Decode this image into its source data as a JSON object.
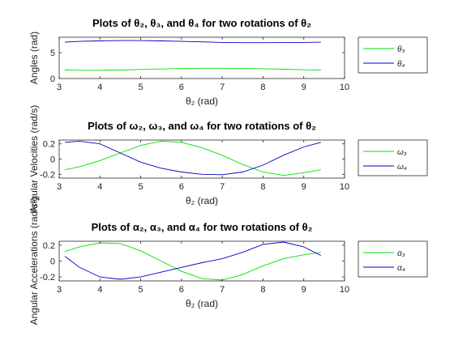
{
  "chart_data": [
    {
      "type": "line",
      "title": "Plots of θ₂, θ₃, and θ₄ for two rotations of θ₂",
      "xlabel": "θ₂ (rad)",
      "ylabel": "Angles (rad)",
      "xlim": [
        3,
        10
      ],
      "ylim": [
        0,
        8
      ],
      "xticks": [
        3,
        4,
        5,
        6,
        7,
        8,
        9,
        10
      ],
      "yticks": [
        0,
        5
      ],
      "legend_position": "outside-right",
      "series": [
        {
          "name": "θ₃",
          "color": "#00e000",
          "x": [
            3.14,
            3.5,
            4.0,
            4.5,
            5.0,
            5.5,
            6.0,
            6.5,
            7.0,
            7.5,
            8.0,
            8.5,
            9.0,
            9.42
          ],
          "y": [
            1.65,
            1.6,
            1.6,
            1.65,
            1.75,
            1.85,
            1.95,
            2.0,
            2.0,
            1.97,
            1.9,
            1.8,
            1.7,
            1.65
          ]
        },
        {
          "name": "θ₄",
          "color": "#0000c0",
          "x": [
            3.14,
            3.5,
            4.0,
            4.5,
            5.0,
            5.5,
            6.0,
            6.5,
            7.0,
            7.5,
            8.0,
            8.5,
            9.0,
            9.42
          ],
          "y": [
            7.05,
            7.2,
            7.3,
            7.35,
            7.35,
            7.3,
            7.2,
            7.1,
            7.0,
            6.95,
            6.95,
            6.97,
            7.0,
            7.05
          ]
        }
      ]
    },
    {
      "type": "line",
      "title": "Plots of ω₂, ω₃, and ω₄ for two rotations of θ₂",
      "xlabel": "θ₂ (rad)",
      "ylabel": "Angular Velocities (rad/s)",
      "xlim": [
        3,
        10
      ],
      "ylim": [
        -0.25,
        0.25
      ],
      "xticks": [
        3,
        4,
        5,
        6,
        7,
        8,
        9,
        10
      ],
      "yticks": [
        -0.2,
        0,
        0.2
      ],
      "legend_position": "outside-right",
      "series": [
        {
          "name": "ω₃",
          "color": "#00e000",
          "x": [
            3.14,
            3.5,
            4.0,
            4.5,
            5.0,
            5.5,
            6.0,
            6.5,
            7.0,
            7.5,
            8.0,
            8.5,
            9.0,
            9.42
          ],
          "y": [
            -0.14,
            -0.1,
            -0.02,
            0.08,
            0.18,
            0.235,
            0.22,
            0.15,
            0.05,
            -0.07,
            -0.17,
            -0.215,
            -0.18,
            -0.14
          ]
        },
        {
          "name": "ω₄",
          "color": "#0000c0",
          "x": [
            3.14,
            3.5,
            4.0,
            4.5,
            5.0,
            5.5,
            6.0,
            6.5,
            7.0,
            7.5,
            8.0,
            8.5,
            9.0,
            9.42
          ],
          "y": [
            0.22,
            0.235,
            0.2,
            0.08,
            -0.04,
            -0.12,
            -0.17,
            -0.2,
            -0.205,
            -0.17,
            -0.08,
            0.05,
            0.16,
            0.22
          ]
        }
      ]
    },
    {
      "type": "line",
      "title": "Plots of α₂, α₃, and α₄ for two rotations of θ₂",
      "xlabel": "θ₂ (rad)",
      "ylabel": "Angular Accelerations (rad/s²)",
      "xlim": [
        3,
        10
      ],
      "ylim": [
        -0.25,
        0.25
      ],
      "xticks": [
        3,
        4,
        5,
        6,
        7,
        8,
        9,
        10
      ],
      "yticks": [
        -0.2,
        0,
        0.2
      ],
      "legend_position": "outside-right",
      "series": [
        {
          "name": "α₃",
          "color": "#00e000",
          "x": [
            3.14,
            3.5,
            4.0,
            4.5,
            5.0,
            5.5,
            6.0,
            6.5,
            7.0,
            7.5,
            8.0,
            8.5,
            9.0,
            9.42
          ],
          "y": [
            0.12,
            0.18,
            0.23,
            0.22,
            0.13,
            0.0,
            -0.13,
            -0.22,
            -0.24,
            -0.17,
            -0.06,
            0.03,
            0.08,
            0.11
          ]
        },
        {
          "name": "α₄",
          "color": "#0000c0",
          "x": [
            3.14,
            3.5,
            4.0,
            4.5,
            5.0,
            5.5,
            6.0,
            6.5,
            7.0,
            7.5,
            8.0,
            8.5,
            9.0,
            9.42
          ],
          "y": [
            0.06,
            -0.08,
            -0.2,
            -0.23,
            -0.2,
            -0.14,
            -0.08,
            -0.02,
            0.03,
            0.11,
            0.21,
            0.24,
            0.18,
            0.07
          ]
        }
      ]
    }
  ]
}
